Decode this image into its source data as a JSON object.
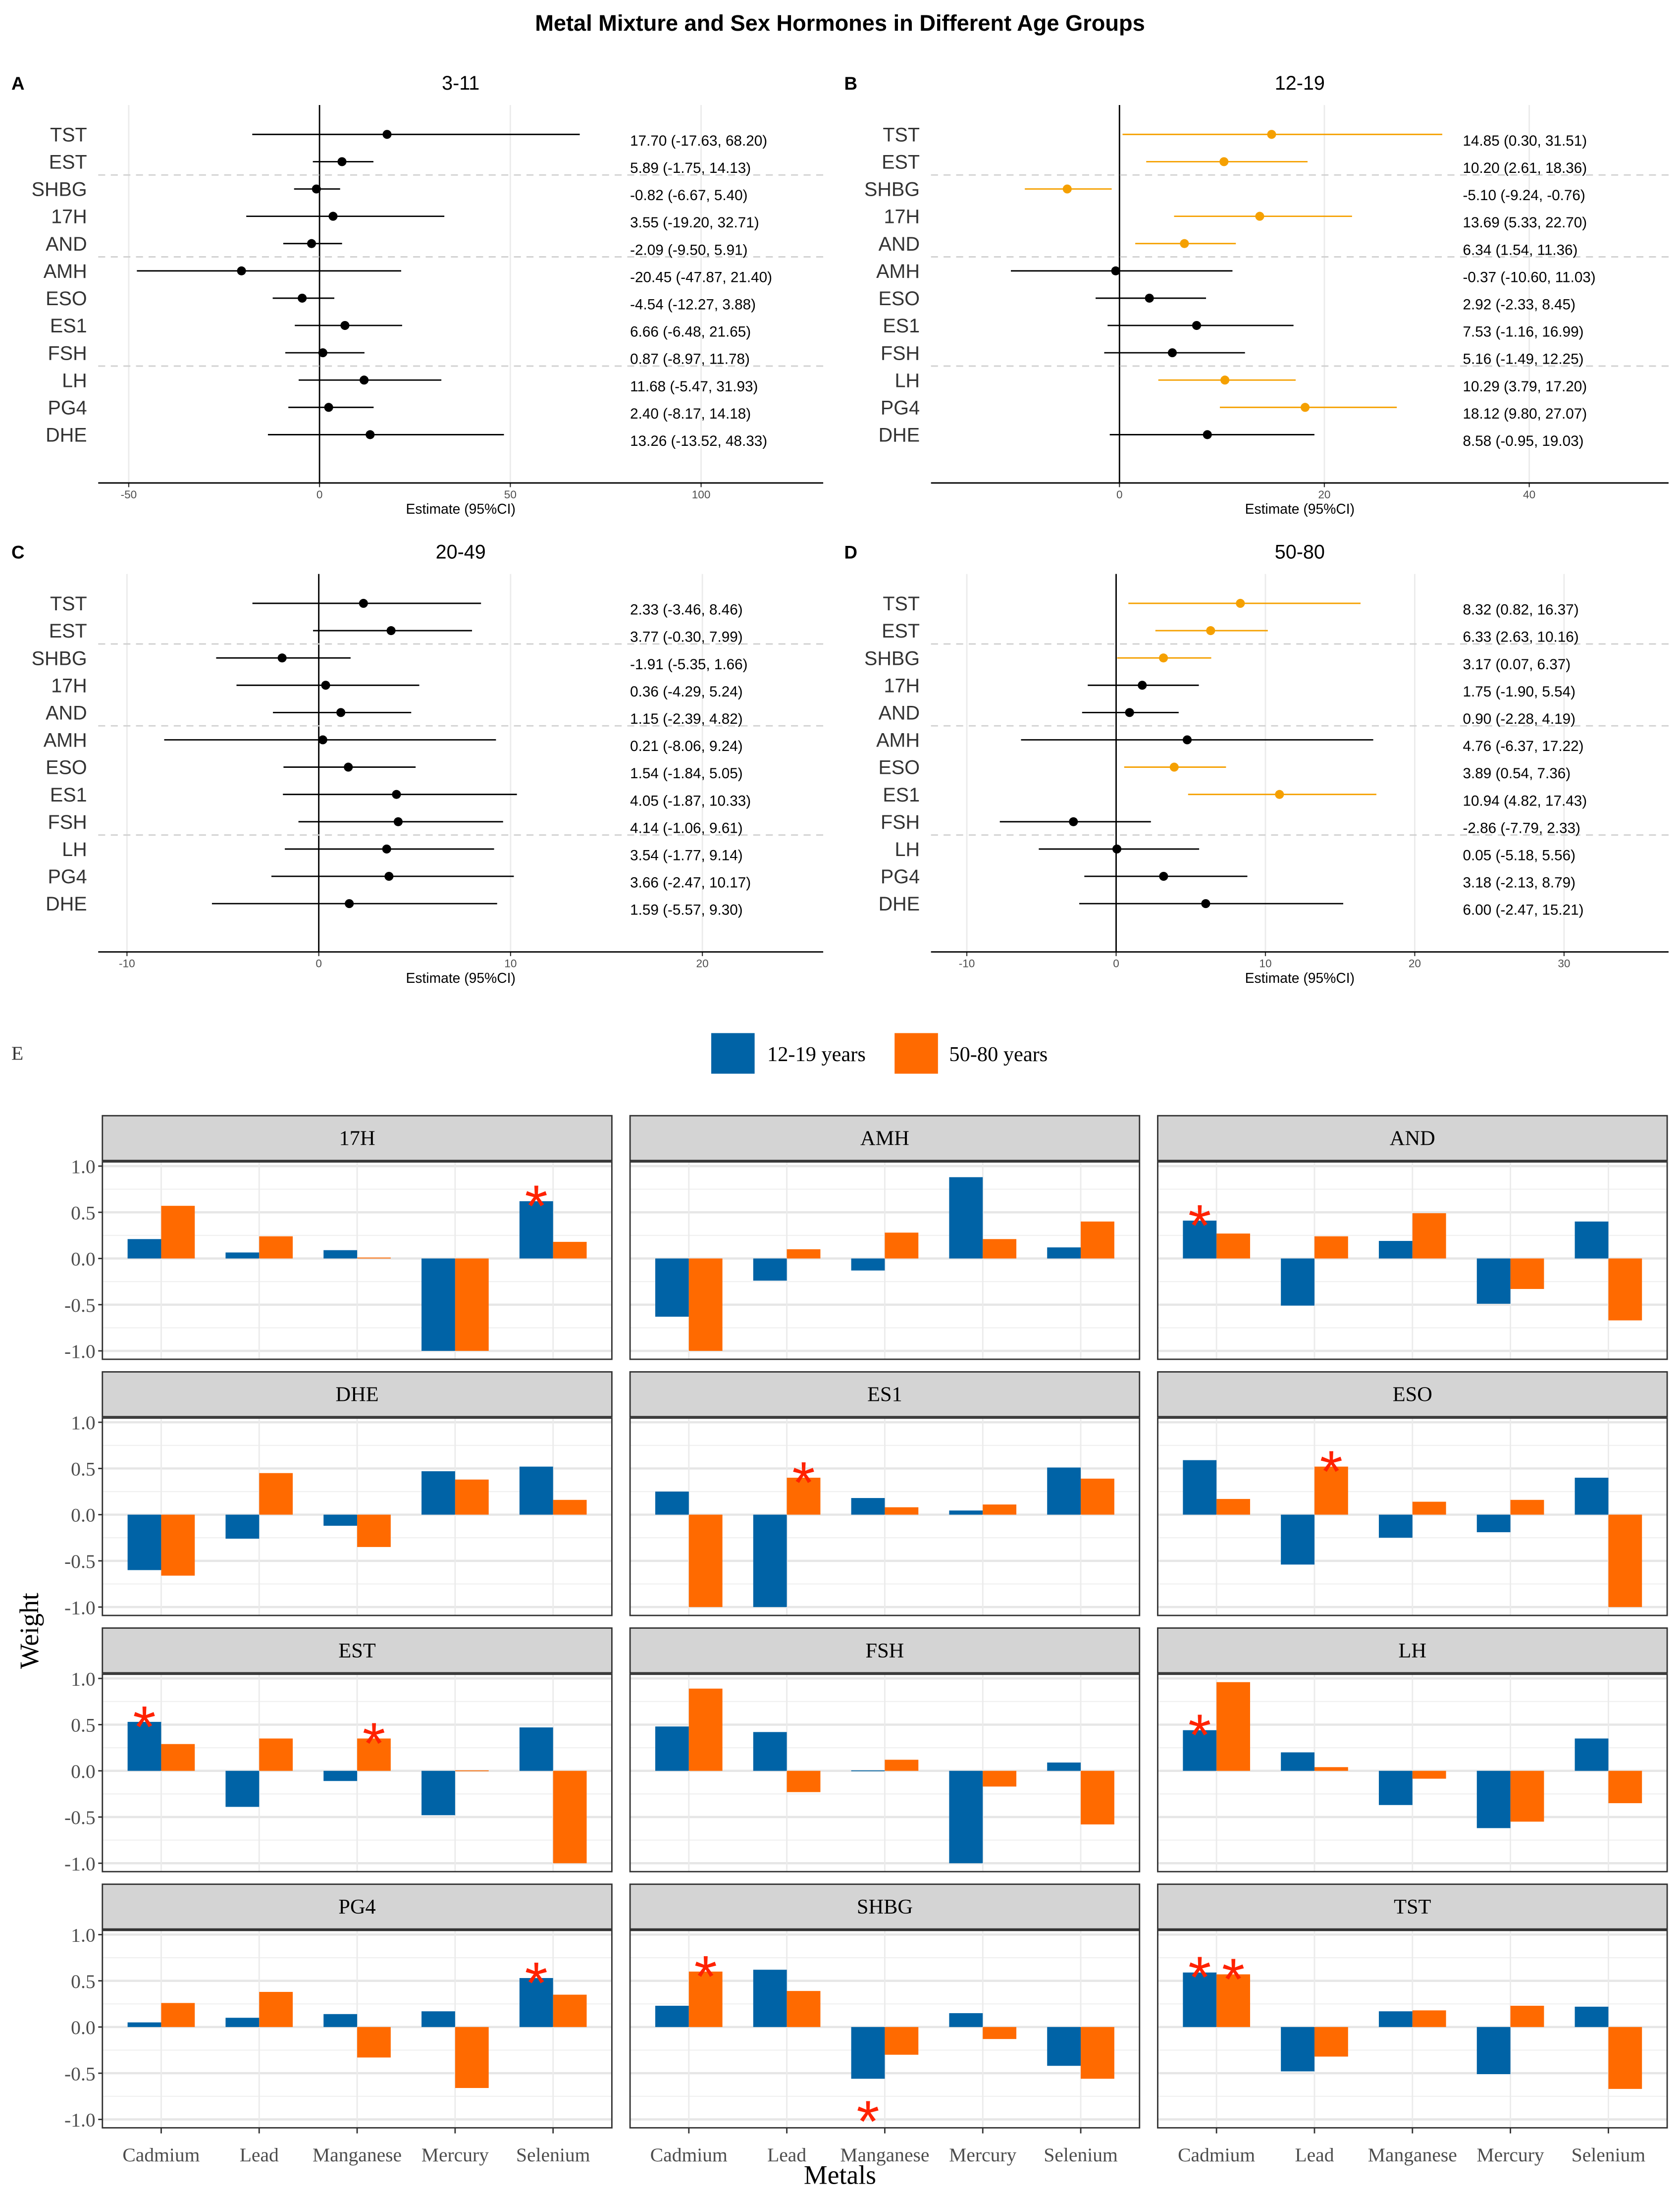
{
  "title": "Metal Mixture and Sex Hormones in Different Age Groups",
  "colors": {
    "nonsignificant": "#000000",
    "significant": "#F5A000",
    "series_12_19": "#0063A6",
    "series_50_80": "#FF6A00",
    "asterisk": "#FF2200"
  },
  "chart_data": [
    {
      "type": "forest",
      "panel_label": "A",
      "title": "3-11",
      "xlabel": "Estimate (95%CI)",
      "xticks": [
        -50,
        0,
        50,
        100
      ],
      "xlim": [
        -58,
        132
      ],
      "rows": [
        {
          "label": "TST",
          "estimate": 17.7,
          "lower": -17.63,
          "upper": 68.2,
          "text": "17.70 (-17.63, 68.20)",
          "significant": false
        },
        {
          "label": "EST",
          "estimate": 5.89,
          "lower": -1.75,
          "upper": 14.13,
          "text": "5.89 (-1.75, 14.13)",
          "significant": false
        },
        {
          "label": "SHBG",
          "estimate": -0.82,
          "lower": -6.67,
          "upper": 5.4,
          "text": "-0.82 (-6.67, 5.40)",
          "significant": false
        },
        {
          "label": "17H",
          "estimate": 3.55,
          "lower": -19.2,
          "upper": 32.71,
          "text": "3.55 (-19.20, 32.71)",
          "significant": false
        },
        {
          "label": "AND",
          "estimate": -2.09,
          "lower": -9.5,
          "upper": 5.91,
          "text": "-2.09 (-9.50, 5.91)",
          "significant": false
        },
        {
          "label": "AMH",
          "estimate": -20.45,
          "lower": -47.87,
          "upper": 21.4,
          "text": "-20.45 (-47.87, 21.40)",
          "significant": false
        },
        {
          "label": "ESO",
          "estimate": -4.54,
          "lower": -12.27,
          "upper": 3.88,
          "text": "-4.54 (-12.27, 3.88)",
          "significant": false
        },
        {
          "label": "ES1",
          "estimate": 6.66,
          "lower": -6.48,
          "upper": 21.65,
          "text": "6.66 (-6.48, 21.65)",
          "significant": false
        },
        {
          "label": "FSH",
          "estimate": 0.87,
          "lower": -8.97,
          "upper": 11.78,
          "text": "0.87 (-8.97, 11.78)",
          "significant": false
        },
        {
          "label": "LH",
          "estimate": 11.68,
          "lower": -5.47,
          "upper": 31.93,
          "text": "11.68 (-5.47, 31.93)",
          "significant": false
        },
        {
          "label": "PG4",
          "estimate": 2.4,
          "lower": -8.17,
          "upper": 14.18,
          "text": "2.40 (-8.17, 14.18)",
          "significant": false
        },
        {
          "label": "DHE",
          "estimate": 13.26,
          "lower": -13.52,
          "upper": 48.33,
          "text": "13.26 (-13.52, 48.33)",
          "significant": false
        }
      ]
    },
    {
      "type": "forest",
      "panel_label": "B",
      "title": "12-19",
      "xlabel": "Estimate (95%CI)",
      "xticks": [
        0,
        20,
        40
      ],
      "xlim": [
        -18.4,
        53.6
      ],
      "rows": [
        {
          "label": "TST",
          "estimate": 14.85,
          "lower": 0.3,
          "upper": 31.51,
          "text": "14.85 (0.30, 31.51)",
          "significant": true
        },
        {
          "label": "EST",
          "estimate": 10.2,
          "lower": 2.61,
          "upper": 18.36,
          "text": "10.20 (2.61, 18.36)",
          "significant": true
        },
        {
          "label": "SHBG",
          "estimate": -5.1,
          "lower": -9.24,
          "upper": -0.76,
          "text": "-5.10 (-9.24, -0.76)",
          "significant": true
        },
        {
          "label": "17H",
          "estimate": 13.69,
          "lower": 5.33,
          "upper": 22.7,
          "text": "13.69 (5.33, 22.70)",
          "significant": true
        },
        {
          "label": "AND",
          "estimate": 6.34,
          "lower": 1.54,
          "upper": 11.36,
          "text": "6.34 (1.54, 11.36)",
          "significant": true
        },
        {
          "label": "AMH",
          "estimate": -0.37,
          "lower": -10.6,
          "upper": 11.03,
          "text": "-0.37 (-10.60, 11.03)",
          "significant": false
        },
        {
          "label": "ESO",
          "estimate": 2.92,
          "lower": -2.33,
          "upper": 8.45,
          "text": "2.92 (-2.33, 8.45)",
          "significant": false
        },
        {
          "label": "ES1",
          "estimate": 7.53,
          "lower": -1.16,
          "upper": 16.99,
          "text": "7.53 (-1.16, 16.99)",
          "significant": false
        },
        {
          "label": "FSH",
          "estimate": 5.16,
          "lower": -1.49,
          "upper": 12.25,
          "text": "5.16 (-1.49, 12.25)",
          "significant": false
        },
        {
          "label": "LH",
          "estimate": 10.29,
          "lower": 3.79,
          "upper": 17.2,
          "text": "10.29 (3.79, 17.20)",
          "significant": true
        },
        {
          "label": "PG4",
          "estimate": 18.12,
          "lower": 9.8,
          "upper": 27.07,
          "text": "18.12 (9.80, 27.07)",
          "significant": true
        },
        {
          "label": "DHE",
          "estimate": 8.58,
          "lower": -0.95,
          "upper": 19.03,
          "text": "8.58 (-0.95, 19.03)",
          "significant": false
        }
      ]
    },
    {
      "type": "forest",
      "panel_label": "C",
      "title": "20-49",
      "xlabel": "Estimate (95%CI)",
      "xticks": [
        -10,
        0,
        10,
        20
      ],
      "xlim": [
        -11.5,
        26.3
      ],
      "rows": [
        {
          "label": "TST",
          "estimate": 2.33,
          "lower": -3.46,
          "upper": 8.46,
          "text": "2.33 (-3.46, 8.46)",
          "significant": false
        },
        {
          "label": "EST",
          "estimate": 3.77,
          "lower": -0.3,
          "upper": 7.99,
          "text": "3.77 (-0.30, 7.99)",
          "significant": false
        },
        {
          "label": "SHBG",
          "estimate": -1.91,
          "lower": -5.35,
          "upper": 1.66,
          "text": "-1.91 (-5.35, 1.66)",
          "significant": false
        },
        {
          "label": "17H",
          "estimate": 0.36,
          "lower": -4.29,
          "upper": 5.24,
          "text": "0.36 (-4.29, 5.24)",
          "significant": false
        },
        {
          "label": "AND",
          "estimate": 1.15,
          "lower": -2.39,
          "upper": 4.82,
          "text": "1.15 (-2.39, 4.82)",
          "significant": false
        },
        {
          "label": "AMH",
          "estimate": 0.21,
          "lower": -8.06,
          "upper": 9.24,
          "text": "0.21 (-8.06, 9.24)",
          "significant": false
        },
        {
          "label": "ESO",
          "estimate": 1.54,
          "lower": -1.84,
          "upper": 5.05,
          "text": "1.54 (-1.84, 5.05)",
          "significant": false
        },
        {
          "label": "ES1",
          "estimate": 4.05,
          "lower": -1.87,
          "upper": 10.33,
          "text": "4.05 (-1.87, 10.33)",
          "significant": false
        },
        {
          "label": "FSH",
          "estimate": 4.14,
          "lower": -1.06,
          "upper": 9.61,
          "text": "4.14 (-1.06, 9.61)",
          "significant": false
        },
        {
          "label": "LH",
          "estimate": 3.54,
          "lower": -1.77,
          "upper": 9.14,
          "text": "3.54 (-1.77, 9.14)",
          "significant": false
        },
        {
          "label": "PG4",
          "estimate": 3.66,
          "lower": -2.47,
          "upper": 10.17,
          "text": "3.66 (-2.47, 10.17)",
          "significant": false
        },
        {
          "label": "DHE",
          "estimate": 1.59,
          "lower": -5.57,
          "upper": 9.3,
          "text": "1.59 (-5.57, 9.30)",
          "significant": false
        }
      ]
    },
    {
      "type": "forest",
      "panel_label": "D",
      "title": "50-80",
      "xlabel": "Estimate (95%CI)",
      "xticks": [
        -10,
        0,
        10,
        20,
        30
      ],
      "xlim": [
        -12.4,
        37
      ],
      "rows": [
        {
          "label": "TST",
          "estimate": 8.32,
          "lower": 0.82,
          "upper": 16.37,
          "text": "8.32 (0.82, 16.37)",
          "significant": true
        },
        {
          "label": "EST",
          "estimate": 6.33,
          "lower": 2.63,
          "upper": 10.16,
          "text": "6.33 (2.63, 10.16)",
          "significant": true
        },
        {
          "label": "SHBG",
          "estimate": 3.17,
          "lower": 0.07,
          "upper": 6.37,
          "text": "3.17 (0.07, 6.37)",
          "significant": true
        },
        {
          "label": "17H",
          "estimate": 1.75,
          "lower": -1.9,
          "upper": 5.54,
          "text": "1.75 (-1.90, 5.54)",
          "significant": false
        },
        {
          "label": "AND",
          "estimate": 0.9,
          "lower": -2.28,
          "upper": 4.19,
          "text": "0.90 (-2.28, 4.19)",
          "significant": false
        },
        {
          "label": "AMH",
          "estimate": 4.76,
          "lower": -6.37,
          "upper": 17.22,
          "text": "4.76 (-6.37, 17.22)",
          "significant": false
        },
        {
          "label": "ESO",
          "estimate": 3.89,
          "lower": 0.54,
          "upper": 7.36,
          "text": "3.89 (0.54, 7.36)",
          "significant": true
        },
        {
          "label": "ES1",
          "estimate": 10.94,
          "lower": 4.82,
          "upper": 17.43,
          "text": "10.94 (4.82, 17.43)",
          "significant": true
        },
        {
          "label": "FSH",
          "estimate": -2.86,
          "lower": -7.79,
          "upper": 2.33,
          "text": "-2.86 (-7.79, 2.33)",
          "significant": false
        },
        {
          "label": "LH",
          "estimate": 0.05,
          "lower": -5.18,
          "upper": 5.56,
          "text": "0.05 (-5.18, 5.56)",
          "significant": false
        },
        {
          "label": "PG4",
          "estimate": 3.18,
          "lower": -2.13,
          "upper": 8.79,
          "text": "3.18 (-2.13, 8.79)",
          "significant": false
        },
        {
          "label": "DHE",
          "estimate": 6.0,
          "lower": -2.47,
          "upper": 15.21,
          "text": "6.00 (-2.47, 15.21)",
          "significant": false
        }
      ]
    },
    {
      "type": "bar",
      "panel_label": "E",
      "xlabel": "Metals",
      "ylabel": "Weight",
      "ylim": [
        -1,
        1
      ],
      "yticks": [
        "1.0",
        "0.5",
        "0.0",
        "-0.5",
        "-1.0"
      ],
      "categories": [
        "Cadmium",
        "Lead",
        "Manganese",
        "Mercury",
        "Selenium"
      ],
      "legend": {
        "position": "top",
        "entries": [
          "12-19 years",
          "50-80 years"
        ]
      },
      "significance_marker": "*",
      "facets": [
        {
          "title": "17H",
          "series_12_19": [
            0.21,
            0.065,
            0.09,
            -1.0,
            0.62
          ],
          "series_50_80": [
            0.57,
            0.24,
            0.01,
            -1.0,
            0.18
          ],
          "sig_12_19": [
            "Selenium"
          ],
          "sig_50_80": []
        },
        {
          "title": "AMH",
          "series_12_19": [
            -0.63,
            -0.24,
            -0.13,
            0.88,
            0.12
          ],
          "series_50_80": [
            -1.0,
            0.1,
            0.28,
            0.21,
            0.4
          ],
          "sig_12_19": [],
          "sig_50_80": []
        },
        {
          "title": "AND",
          "series_12_19": [
            0.41,
            -0.51,
            0.19,
            -0.49,
            0.4
          ],
          "series_50_80": [
            0.27,
            0.24,
            0.49,
            -0.33,
            -0.67
          ],
          "sig_12_19": [
            "Cadmium"
          ],
          "sig_50_80": []
        },
        {
          "title": "DHE",
          "series_12_19": [
            -0.6,
            -0.26,
            -0.12,
            0.47,
            0.52
          ],
          "series_50_80": [
            -0.66,
            0.45,
            -0.35,
            0.38,
            0.16
          ],
          "sig_12_19": [],
          "sig_50_80": []
        },
        {
          "title": "ES1",
          "series_12_19": [
            0.25,
            -1.0,
            0.18,
            0.045,
            0.51
          ],
          "series_50_80": [
            -1.0,
            0.4,
            0.08,
            0.11,
            0.39
          ],
          "sig_12_19": [],
          "sig_50_80": [
            "Lead"
          ]
        },
        {
          "title": "ESO",
          "series_12_19": [
            0.59,
            -0.54,
            -0.25,
            -0.19,
            0.4
          ],
          "series_50_80": [
            0.17,
            0.52,
            0.14,
            0.16,
            -1.0
          ],
          "sig_12_19": [],
          "sig_50_80": [
            "Lead"
          ]
        },
        {
          "title": "EST",
          "series_12_19": [
            0.53,
            -0.39,
            -0.11,
            -0.48,
            0.47
          ],
          "series_50_80": [
            0.29,
            0.35,
            0.35,
            0.005,
            -1.0
          ],
          "sig_12_19": [
            "Cadmium"
          ],
          "sig_50_80": [
            "Manganese"
          ]
        },
        {
          "title": "FSH",
          "series_12_19": [
            0.48,
            0.42,
            0.005,
            -1.0,
            0.09
          ],
          "series_50_80": [
            0.89,
            -0.23,
            0.12,
            -0.17,
            -0.58
          ],
          "sig_12_19": [],
          "sig_50_80": []
        },
        {
          "title": "LH",
          "series_12_19": [
            0.44,
            0.2,
            -0.37,
            -0.62,
            0.35
          ],
          "series_50_80": [
            0.96,
            0.04,
            -0.085,
            -0.55,
            -0.35
          ],
          "sig_12_19": [
            "Cadmium"
          ],
          "sig_50_80": []
        },
        {
          "title": "PG4",
          "series_12_19": [
            0.05,
            0.1,
            0.14,
            0.17,
            0.53
          ],
          "series_50_80": [
            0.26,
            0.38,
            -0.33,
            -0.66,
            0.35
          ],
          "sig_12_19": [
            "Selenium"
          ],
          "sig_50_80": []
        },
        {
          "title": "SHBG",
          "series_12_19": [
            0.23,
            0.62,
            -0.56,
            0.15,
            -0.42
          ],
          "series_50_80": [
            0.6,
            0.39,
            -0.3,
            -0.13,
            -0.56
          ],
          "sig_12_19": [
            "Manganese"
          ],
          "sig_50_80": [
            "Cadmium"
          ]
        },
        {
          "title": "TST",
          "series_12_19": [
            0.59,
            -0.48,
            0.17,
            -0.51,
            0.22
          ],
          "series_50_80": [
            0.57,
            -0.32,
            0.18,
            0.23,
            -0.67
          ],
          "sig_12_19": [
            "Cadmium"
          ],
          "sig_50_80": [
            "Cadmium"
          ]
        }
      ]
    }
  ]
}
